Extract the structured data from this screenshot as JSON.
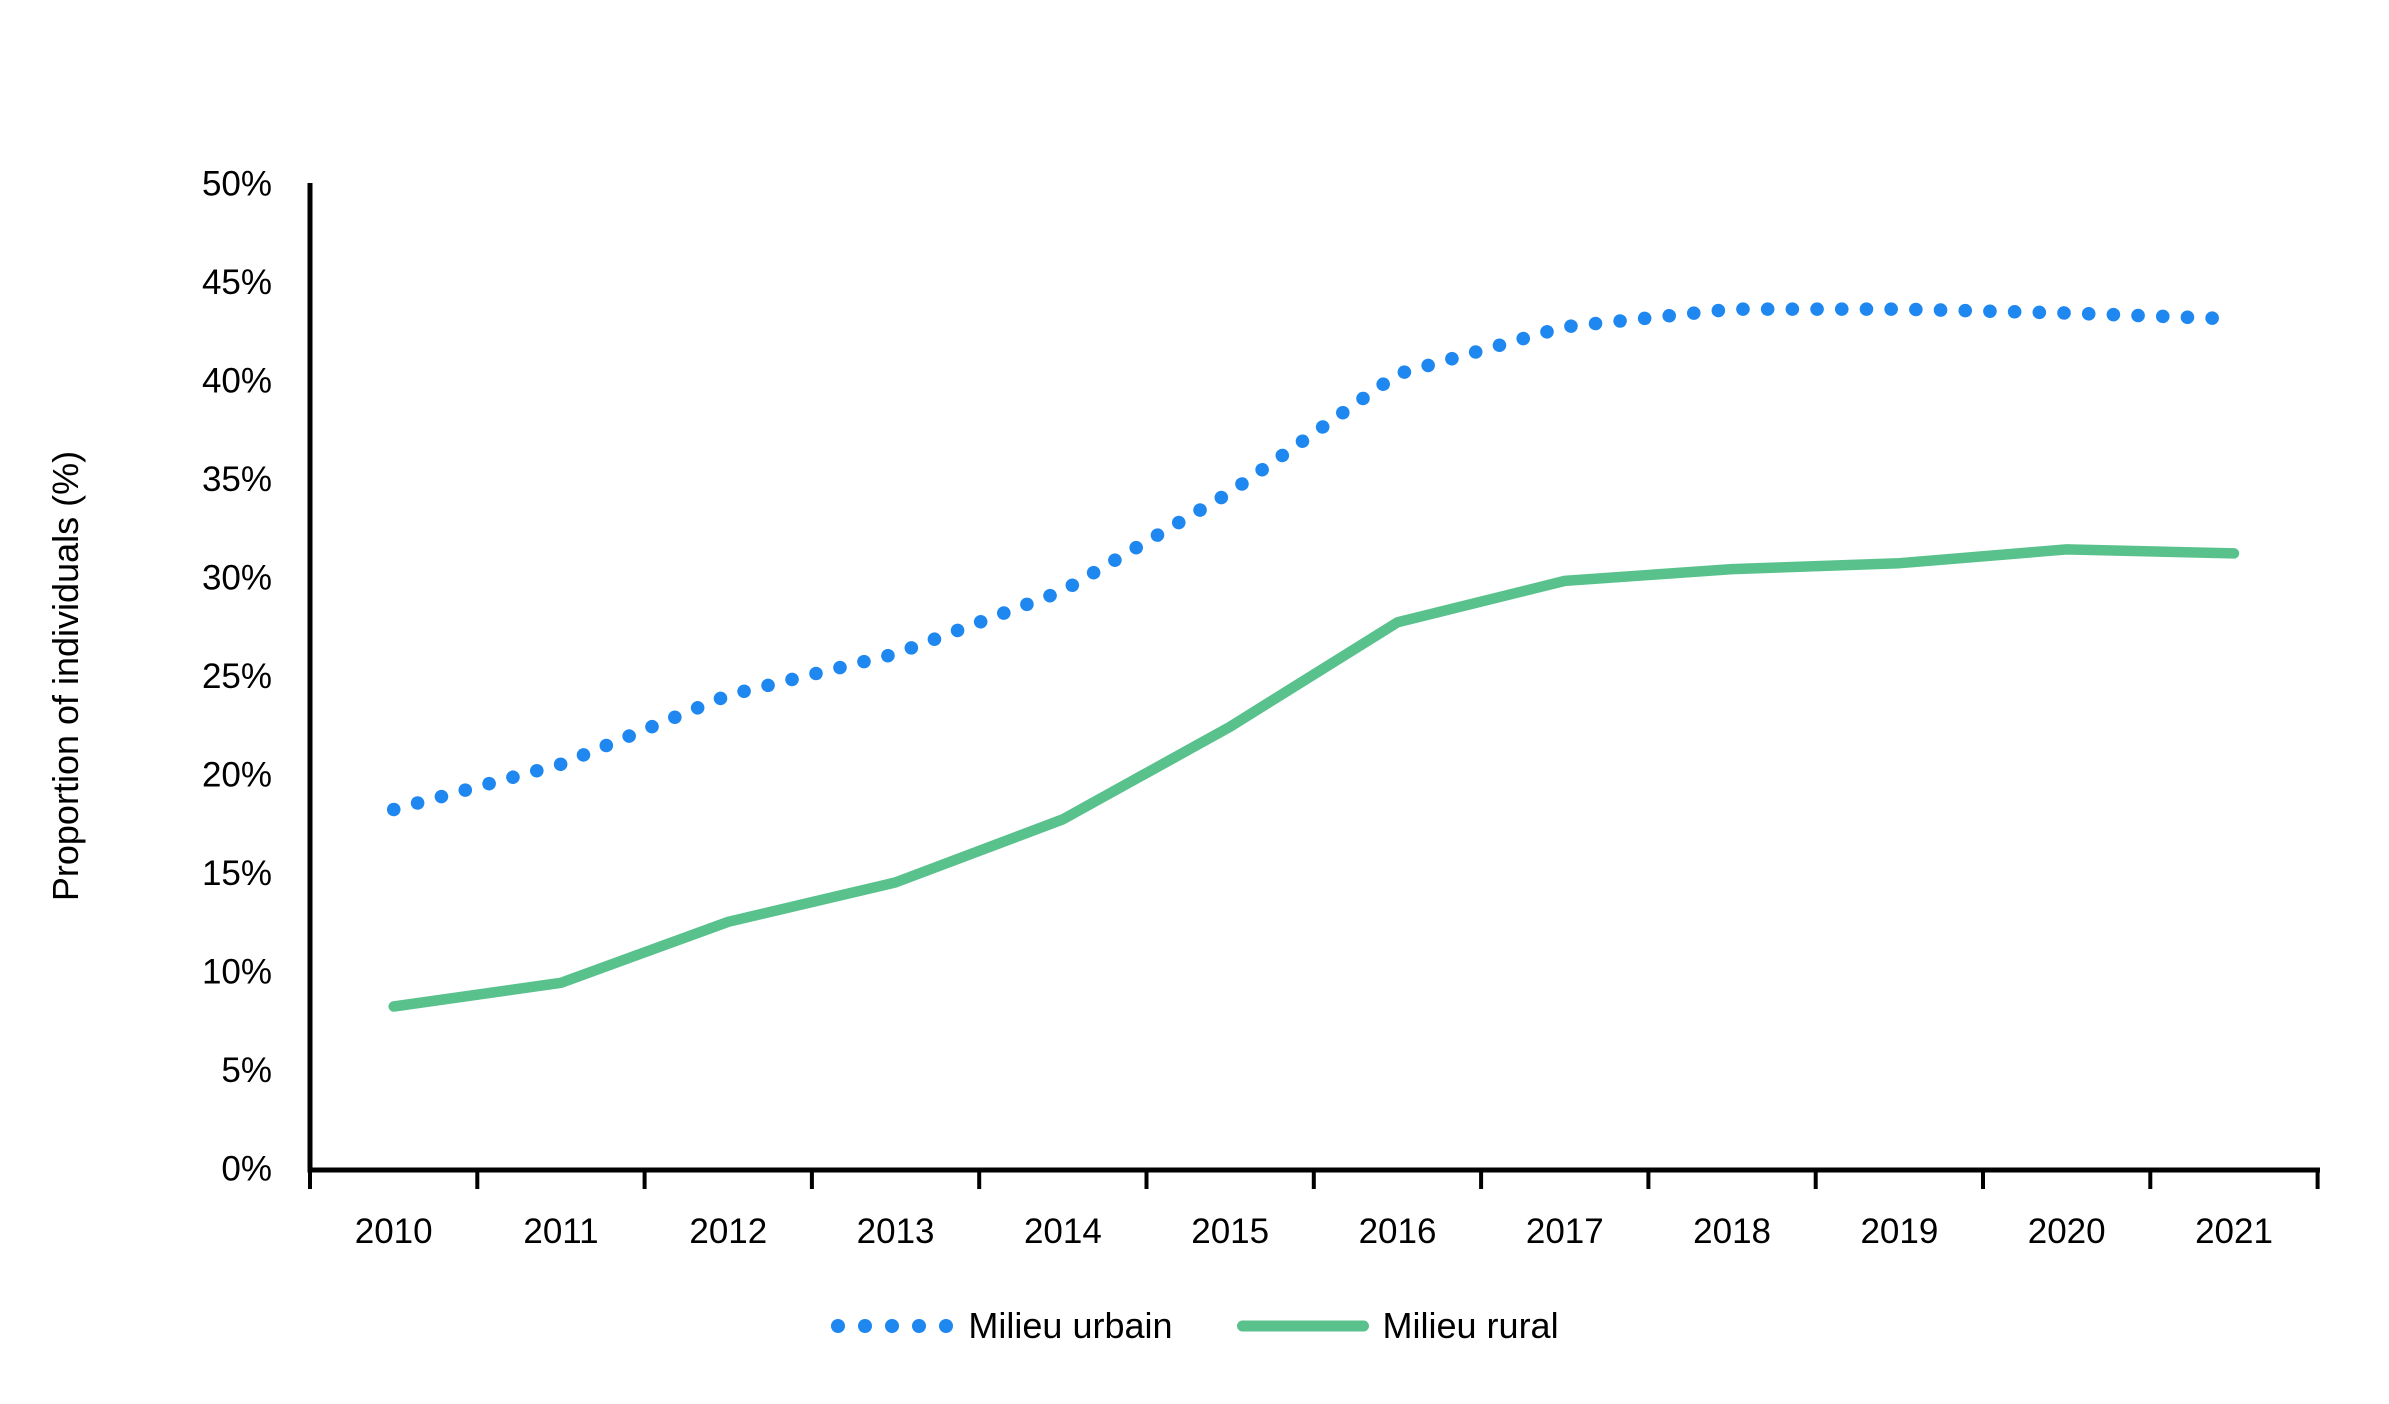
{
  "page": {
    "background": "#FFFFFF"
  },
  "chart_data": {
    "type": "line",
    "title": "",
    "ylabel": "Proportion of individuals (%)",
    "xlabel": "",
    "ylim": [
      0,
      50
    ],
    "ytick_step": 5,
    "ytick_labels": [
      "0%",
      "5%",
      "10%",
      "15%",
      "20%",
      "25%",
      "30%",
      "35%",
      "40%",
      "45%",
      "50%"
    ],
    "categories": [
      "2010",
      "2011",
      "2012",
      "2013",
      "2014",
      "2015",
      "2016",
      "2017",
      "2018",
      "2019",
      "2020",
      "2021"
    ],
    "series": [
      {
        "name": "Milieu urbain",
        "color": "#1E87F0",
        "line_style": "dotted",
        "values": [
          18.2,
          20.5,
          24.0,
          26.1,
          29.3,
          34.3,
          40.3,
          42.7,
          43.6,
          43.6,
          43.4,
          43.1
        ]
      },
      {
        "name": "Milieu rural",
        "color": "#59C28C",
        "line_style": "solid",
        "values": [
          8.2,
          9.4,
          12.5,
          14.5,
          17.7,
          22.4,
          27.7,
          29.8,
          30.4,
          30.7,
          31.4,
          31.2
        ]
      }
    ],
    "legend_position": "bottom",
    "grid": false,
    "axis_color": "#000000"
  }
}
